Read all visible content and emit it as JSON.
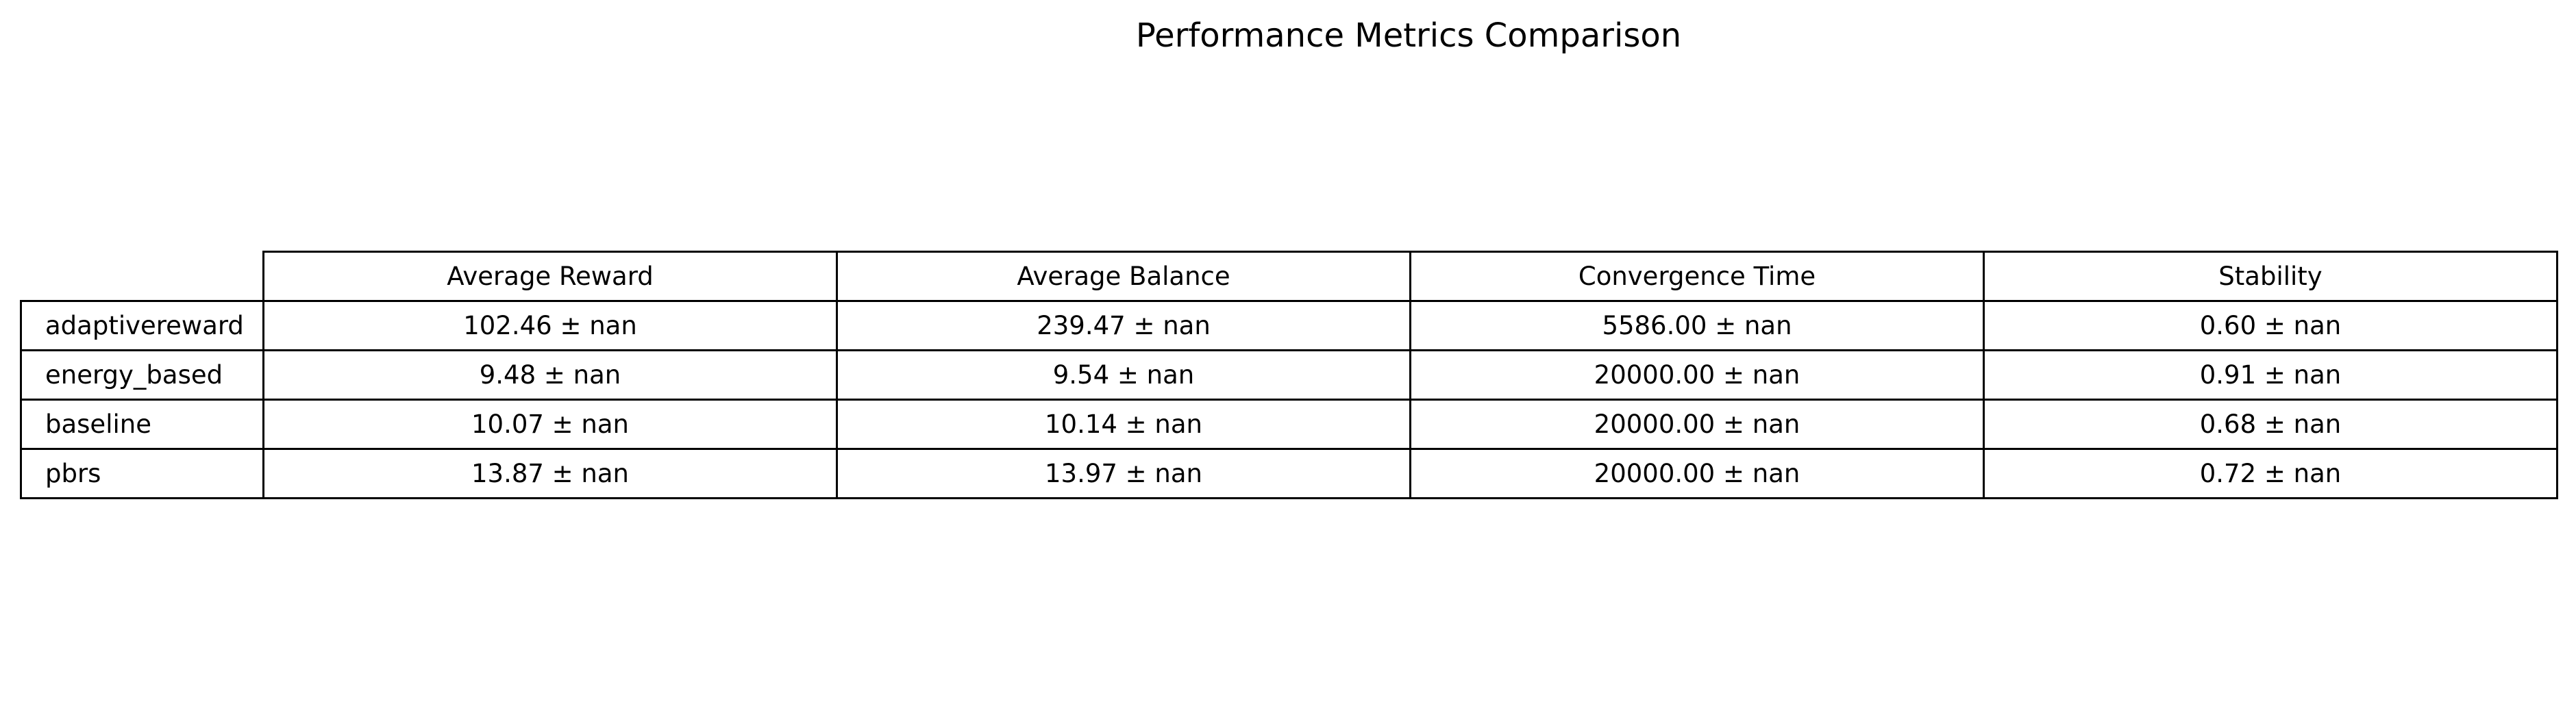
{
  "chart_data": {
    "type": "table",
    "title": "Performance Metrics Comparison",
    "columns": [
      "Average Reward",
      "Average Balance",
      "Convergence Time",
      "Stability"
    ],
    "rows": [
      {
        "label": "adaptivereward",
        "cells": [
          "102.46 ± nan",
          "239.47 ± nan",
          "5586.00 ± nan",
          "0.60 ± nan"
        ]
      },
      {
        "label": "energy_based",
        "cells": [
          "9.48 ± nan",
          "9.54 ± nan",
          "20000.00 ± nan",
          "0.91 ± nan"
        ]
      },
      {
        "label": "baseline",
        "cells": [
          "10.07 ± nan",
          "10.14 ± nan",
          "20000.00 ± nan",
          "0.68 ± nan"
        ]
      },
      {
        "label": "pbrs",
        "cells": [
          "13.87 ± nan",
          "13.97 ± nan",
          "20000.00 ± nan",
          "0.72 ± nan"
        ]
      }
    ]
  }
}
